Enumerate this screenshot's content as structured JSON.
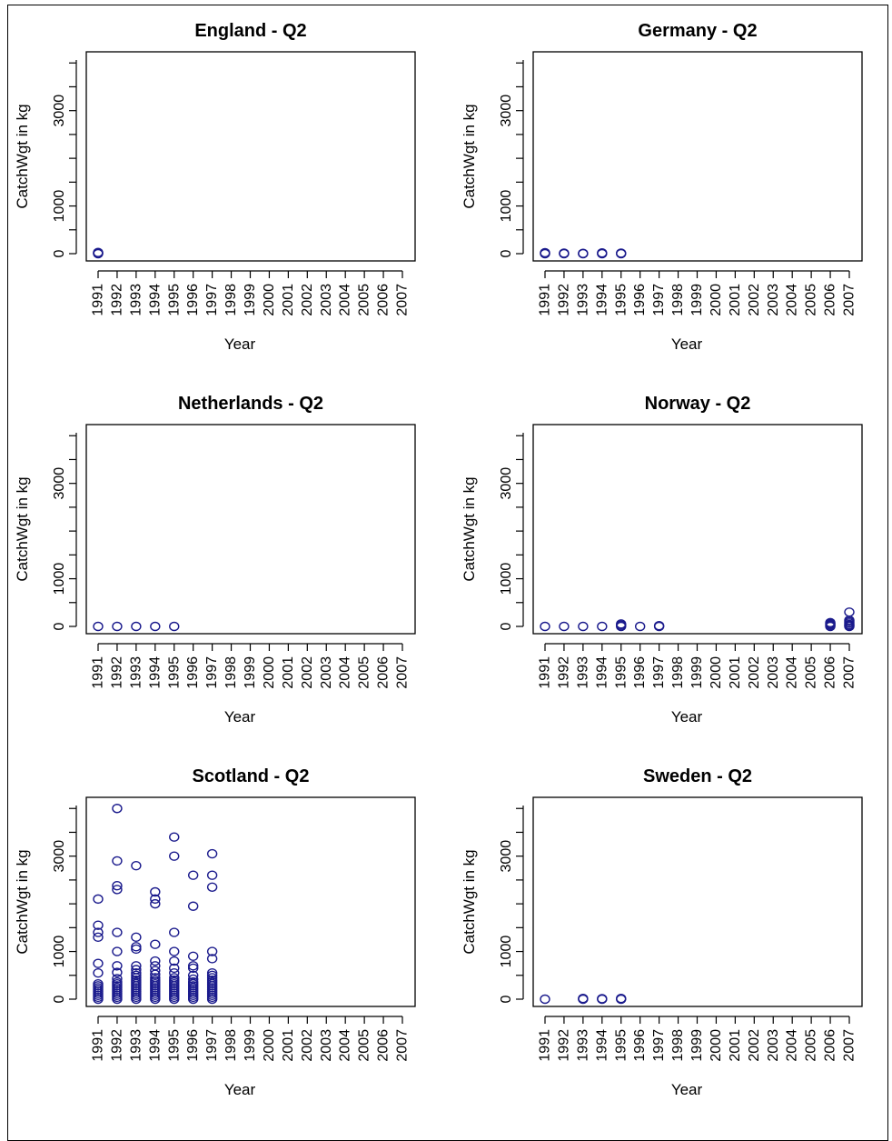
{
  "chart_data": [
    {
      "type": "scatter",
      "title": "England - Q2",
      "xlabel": "Year",
      "ylabel": "CatchWgt in kg",
      "x_categories": [
        "1991",
        "1992",
        "1993",
        "1994",
        "1995",
        "1996",
        "1997",
        "1998",
        "1999",
        "2000",
        "2001",
        "2002",
        "2003",
        "2004",
        "2005",
        "2006",
        "2007"
      ],
      "y_ticks": [
        0,
        1000,
        3000
      ],
      "ylim": [
        0,
        4100
      ],
      "point_color": "#1a1a8c",
      "points": [
        [
          "1991",
          0
        ],
        [
          "1991",
          10
        ],
        [
          "1991",
          25
        ]
      ]
    },
    {
      "type": "scatter",
      "title": "Germany - Q2",
      "xlabel": "Year",
      "ylabel": "CatchWgt in kg",
      "x_categories": [
        "1991",
        "1992",
        "1993",
        "1994",
        "1995",
        "1996",
        "1997",
        "1998",
        "1999",
        "2000",
        "2001",
        "2002",
        "2003",
        "2004",
        "2005",
        "2006",
        "2007"
      ],
      "y_ticks": [
        0,
        1000,
        3000
      ],
      "ylim": [
        0,
        4100
      ],
      "point_color": "#1a1a8c",
      "points": [
        [
          "1991",
          0
        ],
        [
          "1991",
          20
        ],
        [
          "1992",
          0
        ],
        [
          "1992",
          10
        ],
        [
          "1993",
          0
        ],
        [
          "1993",
          5
        ],
        [
          "1994",
          0
        ],
        [
          "1994",
          15
        ],
        [
          "1995",
          0
        ],
        [
          "1995",
          10
        ]
      ]
    },
    {
      "type": "scatter",
      "title": "Netherlands - Q2",
      "xlabel": "Year",
      "ylabel": "CatchWgt in kg",
      "x_categories": [
        "1991",
        "1992",
        "1993",
        "1994",
        "1995",
        "1996",
        "1997",
        "1998",
        "1999",
        "2000",
        "2001",
        "2002",
        "2003",
        "2004",
        "2005",
        "2006",
        "2007"
      ],
      "y_ticks": [
        0,
        1000,
        3000
      ],
      "ylim": [
        0,
        4100
      ],
      "point_color": "#1a1a8c",
      "points": [
        [
          "1991",
          0
        ],
        [
          "1992",
          0
        ],
        [
          "1993",
          0
        ],
        [
          "1994",
          0
        ],
        [
          "1995",
          0
        ]
      ]
    },
    {
      "type": "scatter",
      "title": "Norway - Q2",
      "xlabel": "Year",
      "ylabel": "CatchWgt in kg",
      "x_categories": [
        "1991",
        "1992",
        "1993",
        "1994",
        "1995",
        "1996",
        "1997",
        "1998",
        "1999",
        "2000",
        "2001",
        "2002",
        "2003",
        "2004",
        "2005",
        "2006",
        "2007"
      ],
      "y_ticks": [
        0,
        1000,
        3000
      ],
      "ylim": [
        0,
        4100
      ],
      "point_color": "#1a1a8c",
      "points": [
        [
          "1991",
          0
        ],
        [
          "1992",
          0
        ],
        [
          "1993",
          0
        ],
        [
          "1994",
          0
        ],
        [
          "1995",
          0
        ],
        [
          "1995",
          25
        ],
        [
          "1995",
          50
        ],
        [
          "1996",
          0
        ],
        [
          "1997",
          0
        ],
        [
          "1997",
          15
        ],
        [
          "2006",
          0
        ],
        [
          "2006",
          20
        ],
        [
          "2006",
          40
        ],
        [
          "2006",
          60
        ],
        [
          "2006",
          80
        ],
        [
          "2007",
          0
        ],
        [
          "2007",
          20
        ],
        [
          "2007",
          40
        ],
        [
          "2007",
          70
        ],
        [
          "2007",
          100
        ],
        [
          "2007",
          130
        ],
        [
          "2007",
          300
        ]
      ]
    },
    {
      "type": "scatter",
      "title": "Scotland - Q2",
      "xlabel": "Year",
      "ylabel": "CatchWgt in kg",
      "x_categories": [
        "1991",
        "1992",
        "1993",
        "1994",
        "1995",
        "1996",
        "1997",
        "1998",
        "1999",
        "2000",
        "2001",
        "2002",
        "2003",
        "2004",
        "2005",
        "2006",
        "2007"
      ],
      "y_ticks": [
        0,
        1000,
        3000
      ],
      "ylim": [
        0,
        4100
      ],
      "point_color": "#1a1a8c",
      "points": [
        [
          "1991",
          0
        ],
        [
          "1991",
          40
        ],
        [
          "1991",
          80
        ],
        [
          "1991",
          120
        ],
        [
          "1991",
          160
        ],
        [
          "1991",
          200
        ],
        [
          "1991",
          240
        ],
        [
          "1991",
          280
        ],
        [
          "1991",
          320
        ],
        [
          "1991",
          550
        ],
        [
          "1991",
          750
        ],
        [
          "1991",
          1300
        ],
        [
          "1991",
          1400
        ],
        [
          "1991",
          1550
        ],
        [
          "1991",
          2100
        ],
        [
          "1992",
          0
        ],
        [
          "1992",
          40
        ],
        [
          "1992",
          80
        ],
        [
          "1992",
          120
        ],
        [
          "1992",
          160
        ],
        [
          "1992",
          200
        ],
        [
          "1992",
          240
        ],
        [
          "1992",
          280
        ],
        [
          "1992",
          320
        ],
        [
          "1992",
          360
        ],
        [
          "1992",
          430
        ],
        [
          "1992",
          560
        ],
        [
          "1992",
          700
        ],
        [
          "1992",
          1000
        ],
        [
          "1992",
          1400
        ],
        [
          "1992",
          2300
        ],
        [
          "1992",
          2380
        ],
        [
          "1992",
          2900
        ],
        [
          "1992",
          4000
        ],
        [
          "1993",
          0
        ],
        [
          "1993",
          40
        ],
        [
          "1993",
          80
        ],
        [
          "1993",
          120
        ],
        [
          "1993",
          160
        ],
        [
          "1993",
          200
        ],
        [
          "1993",
          240
        ],
        [
          "1993",
          280
        ],
        [
          "1993",
          320
        ],
        [
          "1993",
          360
        ],
        [
          "1993",
          400
        ],
        [
          "1993",
          450
        ],
        [
          "1993",
          500
        ],
        [
          "1993",
          550
        ],
        [
          "1993",
          620
        ],
        [
          "1993",
          700
        ],
        [
          "1993",
          1050
        ],
        [
          "1993",
          1100
        ],
        [
          "1993",
          1300
        ],
        [
          "1993",
          2800
        ],
        [
          "1994",
          0
        ],
        [
          "1994",
          40
        ],
        [
          "1994",
          80
        ],
        [
          "1994",
          120
        ],
        [
          "1994",
          160
        ],
        [
          "1994",
          200
        ],
        [
          "1994",
          240
        ],
        [
          "1994",
          280
        ],
        [
          "1994",
          320
        ],
        [
          "1994",
          360
        ],
        [
          "1994",
          400
        ],
        [
          "1994",
          450
        ],
        [
          "1994",
          520
        ],
        [
          "1994",
          600
        ],
        [
          "1994",
          700
        ],
        [
          "1994",
          800
        ],
        [
          "1994",
          1150
        ],
        [
          "1994",
          2000
        ],
        [
          "1994",
          2100
        ],
        [
          "1994",
          2250
        ],
        [
          "1995",
          0
        ],
        [
          "1995",
          40
        ],
        [
          "1995",
          80
        ],
        [
          "1995",
          120
        ],
        [
          "1995",
          160
        ],
        [
          "1995",
          200
        ],
        [
          "1995",
          240
        ],
        [
          "1995",
          280
        ],
        [
          "1995",
          320
        ],
        [
          "1995",
          360
        ],
        [
          "1995",
          400
        ],
        [
          "1995",
          450
        ],
        [
          "1995",
          550
        ],
        [
          "1995",
          650
        ],
        [
          "1995",
          800
        ],
        [
          "1995",
          1000
        ],
        [
          "1995",
          1400
        ],
        [
          "1995",
          3000
        ],
        [
          "1995",
          3400
        ],
        [
          "1996",
          0
        ],
        [
          "1996",
          40
        ],
        [
          "1996",
          80
        ],
        [
          "1996",
          120
        ],
        [
          "1996",
          160
        ],
        [
          "1996",
          200
        ],
        [
          "1996",
          240
        ],
        [
          "1996",
          280
        ],
        [
          "1996",
          320
        ],
        [
          "1996",
          360
        ],
        [
          "1996",
          420
        ],
        [
          "1996",
          500
        ],
        [
          "1996",
          650
        ],
        [
          "1996",
          700
        ],
        [
          "1996",
          900
        ],
        [
          "1996",
          1950
        ],
        [
          "1996",
          2600
        ],
        [
          "1997",
          0
        ],
        [
          "1997",
          40
        ],
        [
          "1997",
          80
        ],
        [
          "1997",
          120
        ],
        [
          "1997",
          160
        ],
        [
          "1997",
          200
        ],
        [
          "1997",
          240
        ],
        [
          "1997",
          280
        ],
        [
          "1997",
          320
        ],
        [
          "1997",
          360
        ],
        [
          "1997",
          400
        ],
        [
          "1997",
          450
        ],
        [
          "1997",
          500
        ],
        [
          "1997",
          550
        ],
        [
          "1997",
          850
        ],
        [
          "1997",
          1000
        ],
        [
          "1997",
          2350
        ],
        [
          "1997",
          2600
        ],
        [
          "1997",
          3050
        ]
      ]
    },
    {
      "type": "scatter",
      "title": "Sweden - Q2",
      "xlabel": "Year",
      "ylabel": "CatchWgt in kg",
      "x_categories": [
        "1991",
        "1992",
        "1993",
        "1994",
        "1995",
        "1996",
        "1997",
        "1998",
        "1999",
        "2000",
        "2001",
        "2002",
        "2003",
        "2004",
        "2005",
        "2006",
        "2007"
      ],
      "y_ticks": [
        0,
        1000,
        3000
      ],
      "ylim": [
        0,
        4100
      ],
      "point_color": "#1a1a8c",
      "points": [
        [
          "1991",
          0
        ],
        [
          "1993",
          0
        ],
        [
          "1993",
          15
        ],
        [
          "1994",
          0
        ],
        [
          "1994",
          10
        ],
        [
          "1995",
          0
        ],
        [
          "1995",
          15
        ]
      ]
    }
  ]
}
